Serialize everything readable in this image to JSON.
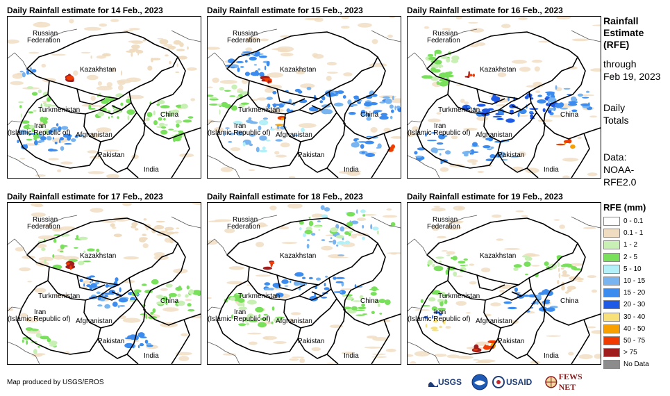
{
  "panels": [
    {
      "title": "Daily Rainfall estimate for 14 Feb., 2023"
    },
    {
      "title": "Daily Rainfall estimate for 15 Feb., 2023"
    },
    {
      "title": "Daily Rainfall estimate for 16 Feb., 2023"
    },
    {
      "title": "Daily Rainfall estimate for 17 Feb., 2023"
    },
    {
      "title": "Daily Rainfall estimate for 18 Feb., 2023"
    },
    {
      "title": "Daily Rainfall estimate for 19 Feb., 2023"
    }
  ],
  "map_labels": {
    "russia_1": "Russian",
    "russia_2": "Federation",
    "kazakhstan": "Kazakhstan",
    "turkmenistan": "Turkmenistan",
    "iran_1": "Iran",
    "iran_2": "(Islamic Republic of)",
    "afghanistan": "Afghanistan",
    "china": "China",
    "pakistan": "Pakistan",
    "india": "India"
  },
  "sidebar": {
    "heading_lines": [
      "Rainfall",
      "Estimate",
      "(RFE)"
    ],
    "through_lines": [
      "through",
      "Feb 19, 2023"
    ],
    "totals_lines": [
      "Daily",
      "Totals"
    ],
    "data_lines": [
      "Data:",
      "NOAA-",
      "RFE2.0"
    ]
  },
  "legend": {
    "title": "RFE (mm)",
    "items": [
      {
        "label": "0 - 0.1",
        "color": "#ffffff"
      },
      {
        "label": "0.1 - 1",
        "color": "#f0dcc0"
      },
      {
        "label": "1 - 2",
        "color": "#c8f0b4"
      },
      {
        "label": "2 - 5",
        "color": "#78e05a"
      },
      {
        "label": "5 - 10",
        "color": "#b4f0f8"
      },
      {
        "label": "10 - 15",
        "color": "#78b4f0"
      },
      {
        "label": "15 - 20",
        "color": "#3c8cf0"
      },
      {
        "label": "20 - 30",
        "color": "#1e5ae6"
      },
      {
        "label": "30 - 40",
        "color": "#f8e178"
      },
      {
        "label": "40 - 50",
        "color": "#f8a000"
      },
      {
        "label": "50 - 75",
        "color": "#f03c00"
      },
      {
        "label": "> 75",
        "color": "#a01e1e"
      },
      {
        "label": "No Data",
        "color": "#8c8c8c"
      }
    ]
  },
  "credit": "Map produced by USGS/EROS",
  "logos": {
    "usgs": "USGS",
    "usaid": "USAID",
    "fewsnet": "FEWS NET"
  }
}
